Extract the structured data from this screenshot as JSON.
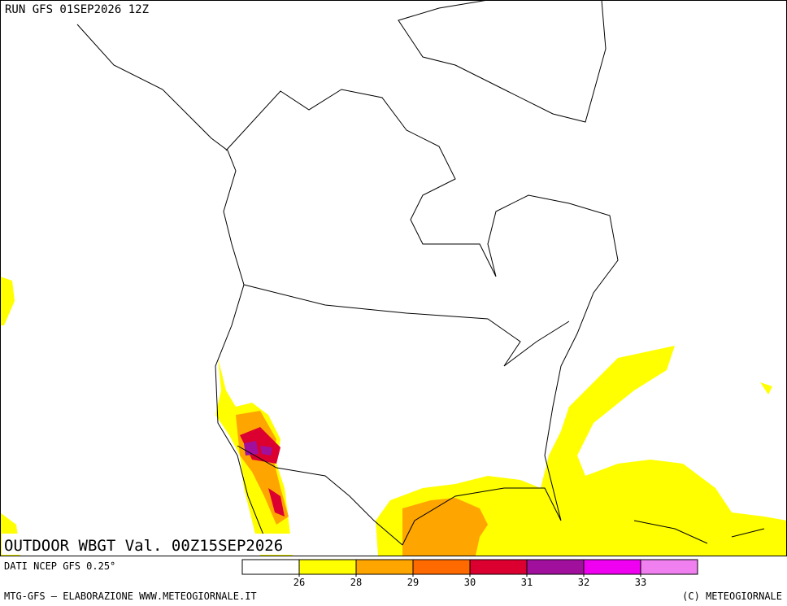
{
  "header": {
    "run": "RUN GFS 01SEP2026 12Z"
  },
  "title": "OUTDOOR WBGT Val. 00Z15SEP2026",
  "source": "DATI NCEP GFS 0.25°",
  "footer": {
    "left": "MTG-GFS — ELABORAZIONE WWW.METEOGIORNALE.IT",
    "right": "(C) METEOGIORNALE"
  },
  "legend": {
    "colors": [
      "#ffffff",
      "#ffff00",
      "#ffa500",
      "#ff6a00",
      "#dc0030",
      "#a0109c",
      "#f000f0",
      "#f080f0"
    ],
    "ticks": [
      26,
      28,
      29,
      30,
      31,
      32,
      33
    ]
  }
}
